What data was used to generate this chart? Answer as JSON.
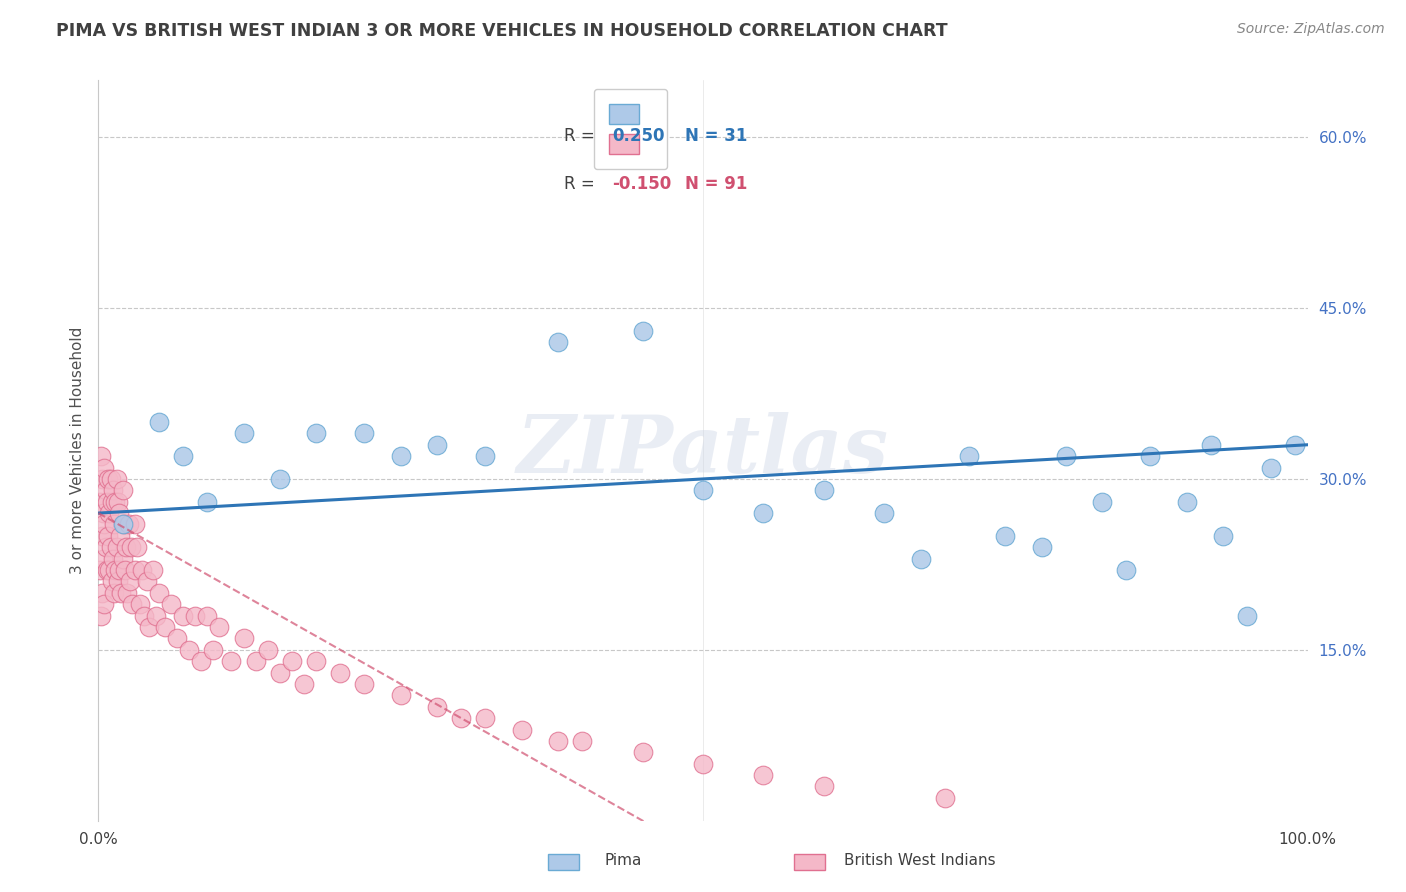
{
  "title": "PIMA VS BRITISH WEST INDIAN 3 OR MORE VEHICLES IN HOUSEHOLD CORRELATION CHART",
  "source": "Source: ZipAtlas.com",
  "ylabel": "3 or more Vehicles in Household",
  "xlim": [
    0.0,
    1.0
  ],
  "ylim": [
    0.0,
    0.65
  ],
  "yticks": [
    0.15,
    0.3,
    0.45,
    0.6
  ],
  "ytick_labels": [
    "15.0%",
    "30.0%",
    "45.0%",
    "60.0%"
  ],
  "pima_color": "#aec9e8",
  "pima_edge_color": "#6aaad4",
  "pima_line_color": "#2e75b6",
  "bwi_color": "#f4b8c8",
  "bwi_edge_color": "#e07090",
  "bwi_line_color": "#d05070",
  "watermark": "ZIPatlas",
  "background_color": "#ffffff",
  "grid_color": "#c8c8c8",
  "title_color": "#404040",
  "pima_x": [
    0.02,
    0.05,
    0.07,
    0.09,
    0.12,
    0.15,
    0.18,
    0.22,
    0.25,
    0.28,
    0.32,
    0.38,
    0.45,
    0.5,
    0.55,
    0.6,
    0.65,
    0.68,
    0.72,
    0.75,
    0.78,
    0.8,
    0.83,
    0.85,
    0.87,
    0.9,
    0.92,
    0.93,
    0.95,
    0.97,
    0.99
  ],
  "pima_y": [
    0.26,
    0.35,
    0.32,
    0.28,
    0.34,
    0.3,
    0.34,
    0.34,
    0.32,
    0.33,
    0.32,
    0.42,
    0.43,
    0.29,
    0.27,
    0.29,
    0.27,
    0.23,
    0.32,
    0.25,
    0.24,
    0.32,
    0.28,
    0.22,
    0.32,
    0.28,
    0.33,
    0.25,
    0.18,
    0.31,
    0.33
  ],
  "bwi_x": [
    0.001,
    0.001,
    0.002,
    0.002,
    0.003,
    0.003,
    0.003,
    0.004,
    0.004,
    0.005,
    0.005,
    0.005,
    0.006,
    0.006,
    0.007,
    0.007,
    0.008,
    0.008,
    0.009,
    0.009,
    0.01,
    0.01,
    0.011,
    0.011,
    0.012,
    0.012,
    0.013,
    0.013,
    0.014,
    0.014,
    0.015,
    0.015,
    0.016,
    0.016,
    0.017,
    0.017,
    0.018,
    0.019,
    0.02,
    0.02,
    0.021,
    0.022,
    0.023,
    0.024,
    0.025,
    0.026,
    0.027,
    0.028,
    0.03,
    0.03,
    0.032,
    0.034,
    0.036,
    0.038,
    0.04,
    0.042,
    0.045,
    0.048,
    0.05,
    0.055,
    0.06,
    0.065,
    0.07,
    0.075,
    0.08,
    0.085,
    0.09,
    0.095,
    0.1,
    0.11,
    0.12,
    0.13,
    0.14,
    0.15,
    0.16,
    0.17,
    0.18,
    0.2,
    0.22,
    0.25,
    0.28,
    0.3,
    0.32,
    0.35,
    0.38,
    0.4,
    0.45,
    0.5,
    0.55,
    0.6,
    0.7
  ],
  "bwi_y": [
    0.28,
    0.22,
    0.32,
    0.18,
    0.3,
    0.25,
    0.2,
    0.27,
    0.23,
    0.31,
    0.26,
    0.19,
    0.29,
    0.24,
    0.28,
    0.22,
    0.3,
    0.25,
    0.27,
    0.22,
    0.3,
    0.24,
    0.28,
    0.21,
    0.29,
    0.23,
    0.26,
    0.2,
    0.28,
    0.22,
    0.3,
    0.24,
    0.28,
    0.21,
    0.27,
    0.22,
    0.25,
    0.2,
    0.29,
    0.23,
    0.26,
    0.22,
    0.24,
    0.2,
    0.26,
    0.21,
    0.24,
    0.19,
    0.26,
    0.22,
    0.24,
    0.19,
    0.22,
    0.18,
    0.21,
    0.17,
    0.22,
    0.18,
    0.2,
    0.17,
    0.19,
    0.16,
    0.18,
    0.15,
    0.18,
    0.14,
    0.18,
    0.15,
    0.17,
    0.14,
    0.16,
    0.14,
    0.15,
    0.13,
    0.14,
    0.12,
    0.14,
    0.13,
    0.12,
    0.11,
    0.1,
    0.09,
    0.09,
    0.08,
    0.07,
    0.07,
    0.06,
    0.05,
    0.04,
    0.03,
    0.02
  ]
}
